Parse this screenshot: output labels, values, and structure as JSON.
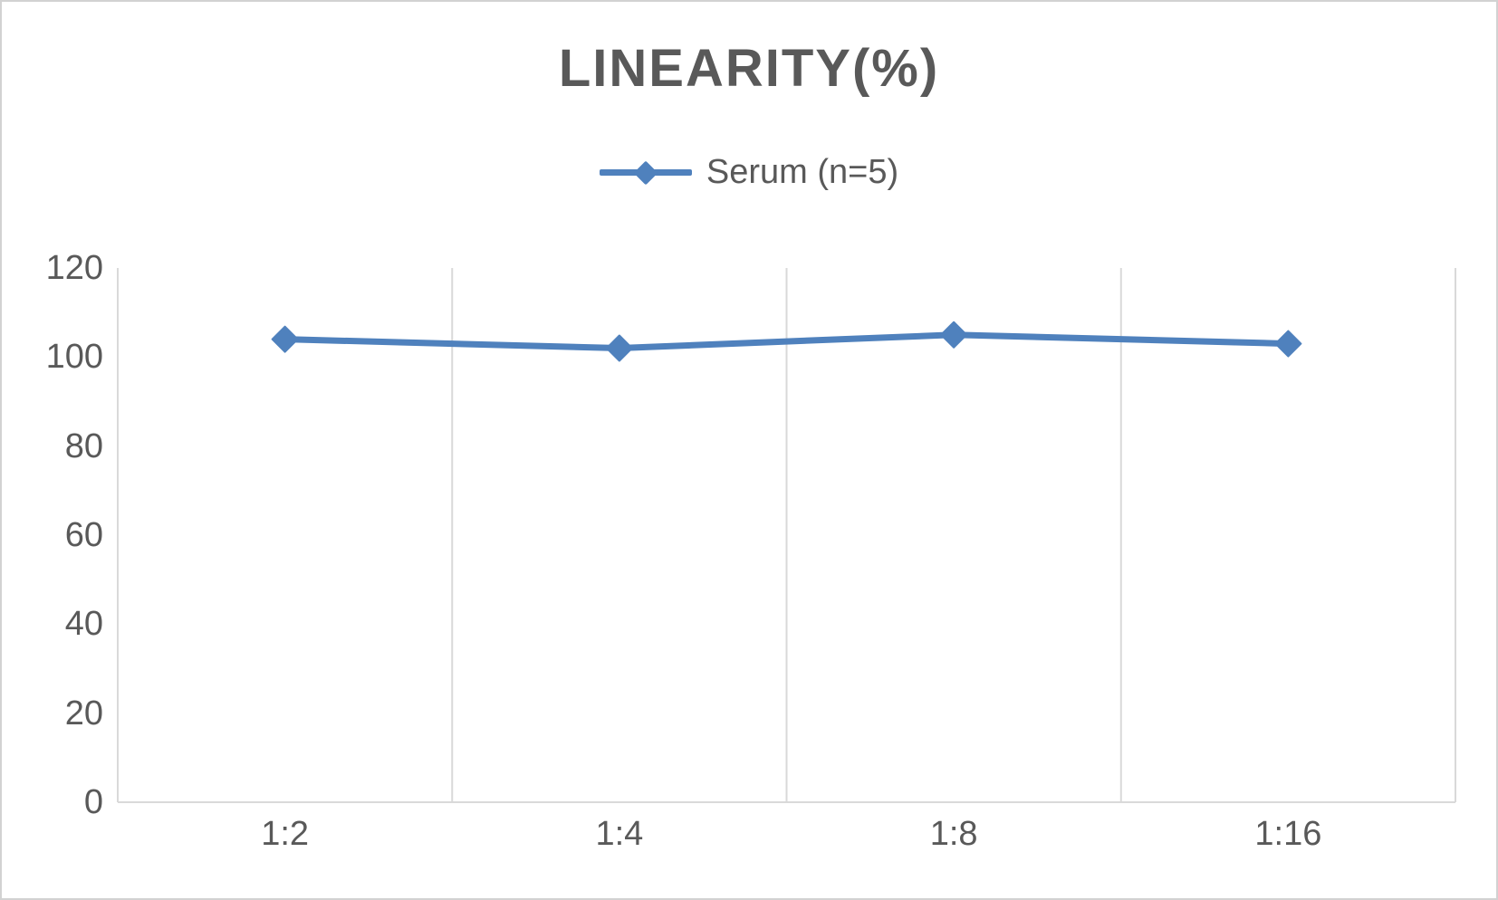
{
  "window": {
    "background": "#ffffff",
    "border_color": "#d2d2d2"
  },
  "chart_data": {
    "type": "line",
    "title": "LINEARITY(%)",
    "title_color": "#595959",
    "categories": [
      "1:2",
      "1:4",
      "1:8",
      "1:16"
    ],
    "series": [
      {
        "name": "Serum (n=5)",
        "values": [
          104,
          102,
          105,
          103
        ],
        "color": "#4F81BD",
        "marker": "diamond"
      }
    ],
    "xlabel": "",
    "ylabel": "",
    "ylim": [
      0,
      120
    ],
    "yticks": [
      0,
      20,
      40,
      60,
      80,
      100,
      120
    ],
    "grid": "vertical-only",
    "gridline_color": "#d9d9d9",
    "axis_line_color": "#d9d9d9",
    "tick_label_color": "#595959",
    "legend_position": "top-center"
  }
}
